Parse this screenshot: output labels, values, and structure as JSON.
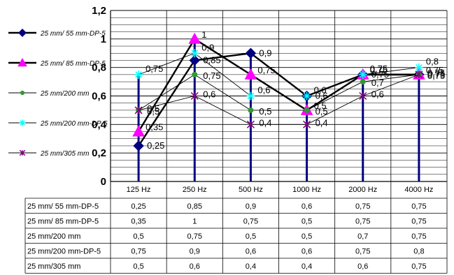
{
  "chart_data": {
    "type": "line",
    "categories": [
      "125 Hz",
      "250 Hz",
      "500 Hz",
      "1000 Hz",
      "2000 Hz",
      "4000 Hz"
    ],
    "y_ticks": [
      "0",
      "0,2",
      "0,4",
      "0,6",
      "0,8",
      "1",
      "1,2"
    ],
    "ylim": [
      0,
      1.2
    ],
    "grid": true,
    "legend_position": "left",
    "series": [
      {
        "name": "25 mm/ 55 mm-DP-5",
        "values": [
          0.25,
          0.85,
          0.9,
          0.6,
          0.75,
          0.75
        ],
        "labels": [
          "0,25",
          "0,85",
          "0,9",
          "0,6",
          "0,75",
          "0,75"
        ],
        "color": "#000080",
        "line_color": "#000000",
        "marker": "diamond",
        "line_weight": "thick"
      },
      {
        "name": "25 mm/ 85 mm-DP-5",
        "values": [
          0.35,
          1,
          0.75,
          0.5,
          0.75,
          0.75
        ],
        "labels": [
          "0,35",
          "1",
          "0,75",
          "0,5",
          "0,75",
          "0,75"
        ],
        "color": "#ff00ff",
        "line_color": "#000000",
        "marker": "triangle",
        "line_weight": "thick"
      },
      {
        "name": "25 mm/200 mm",
        "values": [
          0.5,
          0.75,
          0.5,
          0.5,
          0.7,
          0.75
        ],
        "labels": [
          "0,5",
          "0,75",
          "0,5",
          "0,5",
          "0,7",
          "0,75"
        ],
        "color": "#339933",
        "line_color": "#000000",
        "marker": "circle",
        "line_weight": "thin"
      },
      {
        "name": "25 mm/200 mm-DP-5",
        "values": [
          0.75,
          0.9,
          0.6,
          0.6,
          0.75,
          0.8
        ],
        "labels": [
          "0,75",
          "0,9",
          "0,6",
          "0,6",
          "0,75",
          "0,8"
        ],
        "color": "#00ffff",
        "line_color": "#000000",
        "marker": "star",
        "line_weight": "thin"
      },
      {
        "name": "25 mm/305 mm",
        "values": [
          0.5,
          0.6,
          0.4,
          0.4,
          0.6,
          0.75
        ],
        "labels": [
          "0,5",
          "0,6",
          "0,4",
          "0,4",
          "0,6",
          "0,75"
        ],
        "color": "#800080",
        "line_color": "#000000",
        "marker": "asterisk",
        "line_weight": "thin"
      }
    ],
    "drop_line_color": "#000080",
    "table": {
      "rows": [
        {
          "label": "25 mm/ 55 mm-DP-5",
          "cells": [
            "0,25",
            "0,85",
            "0,9",
            "0,6",
            "0,75",
            "0,75"
          ]
        },
        {
          "label": "25 mm/ 85 mm-DP-5",
          "cells": [
            "0,35",
            "1",
            "0,75",
            "0,5",
            "0,75",
            "0,75"
          ]
        },
        {
          "label": "25 mm/200 mm",
          "cells": [
            "0,5",
            "0,75",
            "0,5",
            "0,5",
            "0,7",
            "0,75"
          ]
        },
        {
          "label": "25 mm/200 mm-DP-5",
          "cells": [
            "0,75",
            "0,9",
            "0,6",
            "0,6",
            "0,75",
            "0,8"
          ]
        },
        {
          "label": "25 mm/305 mm",
          "cells": [
            "0,5",
            "0,6",
            "0,4",
            "0,4",
            "0,6",
            "0,75"
          ]
        }
      ]
    }
  }
}
